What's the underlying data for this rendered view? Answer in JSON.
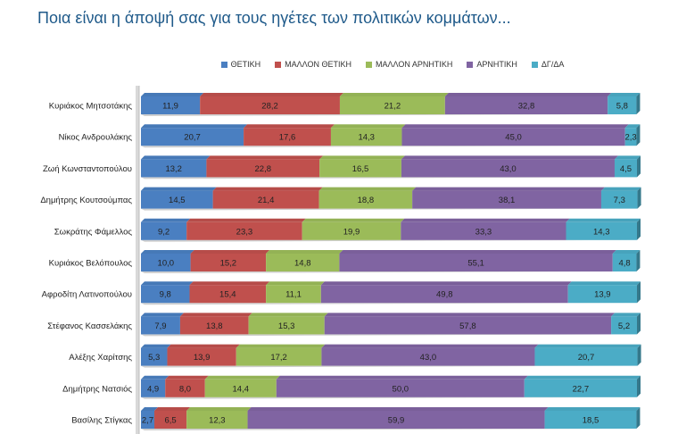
{
  "title": "Ποια είναι η άποψή σας για τους ηγέτες των πολιτικών κομμάτων...",
  "chart_data": {
    "type": "bar",
    "orientation": "horizontal",
    "stacked": true,
    "title": "Ποια είναι η άποψή σας για τους ηγέτες των πολιτικών κομμάτων...",
    "xlim": [
      0,
      100
    ],
    "legend_position": "top",
    "categories": [
      "Κυριάκος Μητσοτάκης",
      "Νίκος Ανδρουλάκης",
      "Ζωή Κωνσταντοπούλου",
      "Δημήτρης Κουτσούμπας",
      "Σωκράτης Φάμελλος",
      "Κυριάκος Βελόπουλος",
      "Αφροδίτη Λατινοπούλου",
      "Στέφανος Κασσελάκης",
      "Αλέξης Χαρίτσης",
      "Δημήτρης Νατσιός",
      "Βασίλης Στίγκας"
    ],
    "series": [
      {
        "name": "ΘΕΤΙΚΗ",
        "color": "#4a7fc1",
        "values": [
          11.9,
          20.7,
          13.2,
          14.5,
          9.2,
          10.0,
          9.8,
          7.9,
          5.3,
          4.9,
          2.7
        ],
        "labels": [
          "11,9",
          "20,7",
          "13,2",
          "14,5",
          "9,2",
          "10,0",
          "9,8",
          "7,9",
          "5,3",
          "4,9",
          "2,7"
        ]
      },
      {
        "name": "ΜΑΛΛΟΝ ΘΕΤΙΚΗ",
        "color": "#c0504d",
        "values": [
          28.2,
          17.6,
          22.8,
          21.4,
          23.3,
          15.2,
          15.4,
          13.8,
          13.9,
          8.0,
          6.5
        ],
        "labels": [
          "28,2",
          "17,6",
          "22,8",
          "21,4",
          "23,3",
          "15,2",
          "15,4",
          "13,8",
          "13,9",
          "8,0",
          "6,5"
        ]
      },
      {
        "name": "ΜΑΛΛΟΝ ΑΡΝΗΤΙΚΗ",
        "color": "#9bbb59",
        "values": [
          21.2,
          14.3,
          16.5,
          18.8,
          19.9,
          14.8,
          11.1,
          15.3,
          17.2,
          14.4,
          12.3
        ],
        "labels": [
          "21,2",
          "14,3",
          "16,5",
          "18,8",
          "19,9",
          "14,8",
          "11,1",
          "15,3",
          "17,2",
          "14,4",
          "12,3"
        ]
      },
      {
        "name": "ΑΡΝΗΤΙΚΗ",
        "color": "#8064a2",
        "values": [
          32.8,
          45.0,
          43.0,
          38.1,
          33.3,
          55.1,
          49.8,
          57.8,
          43.0,
          50.0,
          59.9
        ],
        "labels": [
          "32,8",
          "45,0",
          "43,0",
          "38,1",
          "33,3",
          "55,1",
          "49,8",
          "57,8",
          "43,0",
          "50,0",
          "59,9"
        ]
      },
      {
        "name": "ΔΓ/ΔΑ",
        "color": "#4bacc6",
        "values": [
          5.8,
          2.3,
          4.5,
          7.3,
          14.3,
          4.8,
          13.9,
          5.2,
          20.7,
          22.7,
          18.5
        ],
        "labels": [
          "5,8",
          "2,3",
          "4,5",
          "7,3",
          "14,3",
          "4,8",
          "13,9",
          "5,2",
          "20,7",
          "22,7",
          "18,5"
        ]
      }
    ]
  }
}
